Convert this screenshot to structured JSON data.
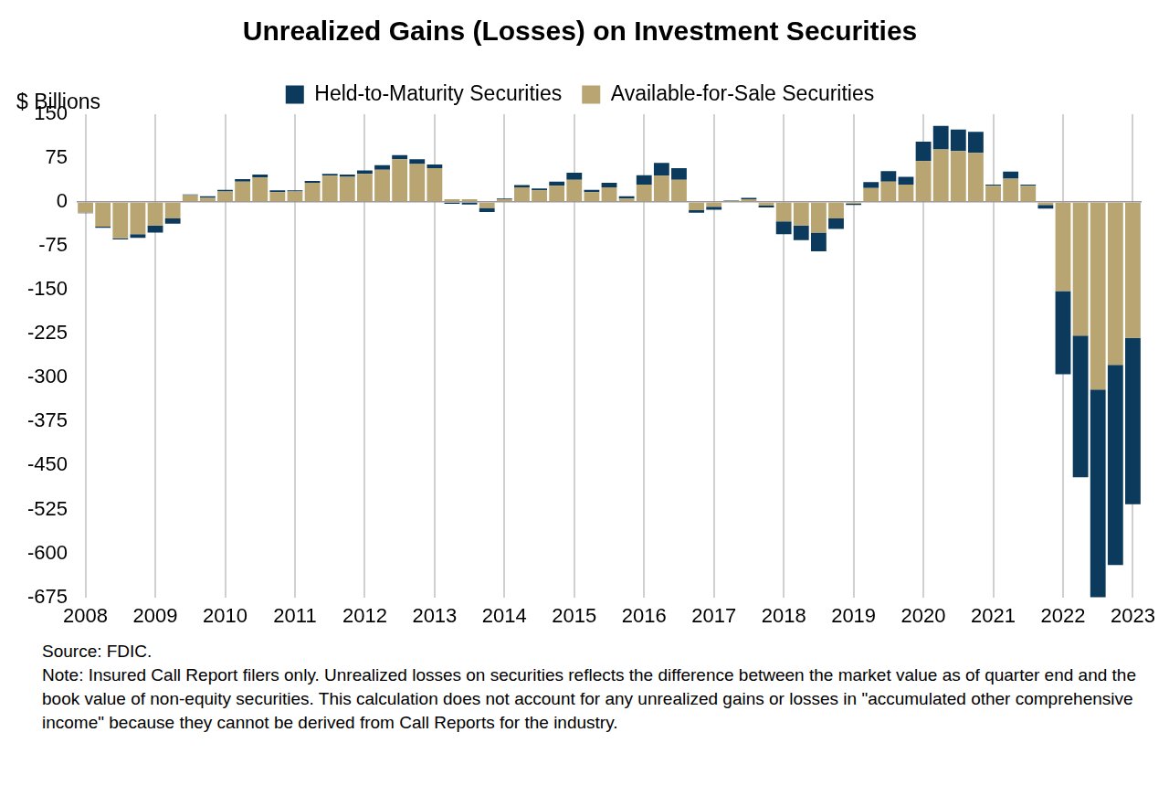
{
  "chart_data": {
    "type": "bar",
    "title": "Unrealized Gains (Losses) on Investment Securities",
    "y_label": "$ Billions",
    "source": "Source: FDIC.",
    "note": "Note: Insured Call Report filers only. Unrealized losses on securities reflects the difference between the market value as of quarter end and the book value of non-equity securities. This calculation does not account for any unrealized gains or losses in \"accumulated other comprehensive income\" because they cannot be derived from Call Reports for the industry.",
    "categories": [
      "2008",
      null,
      null,
      null,
      "2009",
      null,
      null,
      null,
      "2010",
      null,
      null,
      null,
      "2011",
      null,
      null,
      null,
      "2012",
      null,
      null,
      null,
      "2013",
      null,
      null,
      null,
      "2014",
      null,
      null,
      null,
      "2015",
      null,
      null,
      null,
      "2016",
      null,
      null,
      null,
      "2017",
      null,
      null,
      null,
      "2018",
      null,
      null,
      null,
      "2019",
      null,
      null,
      null,
      "2020",
      null,
      null,
      null,
      "2021",
      null,
      null,
      null,
      "2022",
      null,
      null,
      null,
      "2023"
    ],
    "series": [
      {
        "name": "Available-for-Sale Securities",
        "color": "#b8a572",
        "values": [
          -18,
          -42,
          -62,
          -55,
          -40,
          -28,
          12,
          7,
          18,
          35,
          42,
          17,
          18,
          33,
          45,
          43,
          48,
          55,
          73,
          65,
          58,
          5,
          5,
          -10,
          5,
          25,
          20,
          28,
          38,
          17,
          25,
          6,
          30,
          45,
          38,
          -14,
          -8,
          2,
          5,
          -6,
          -33,
          -40,
          -52,
          -28,
          -3,
          24,
          35,
          30,
          70,
          90,
          87,
          84,
          28,
          40,
          28,
          -5,
          -152,
          -228,
          -320,
          -278,
          -232
        ]
      },
      {
        "name": "Held-to-Maturity Securities",
        "color": "#0b3a5c",
        "values": [
          -1,
          -2,
          -2,
          -6,
          -12,
          -9,
          1,
          3,
          3,
          4,
          5,
          3,
          2,
          3,
          3,
          4,
          6,
          8,
          7,
          8,
          6,
          -3,
          -4,
          -7,
          1,
          4,
          3,
          7,
          12,
          4,
          8,
          4,
          16,
          22,
          20,
          -4,
          -5,
          1,
          2,
          -3,
          -22,
          -25,
          -32,
          -18,
          -2,
          10,
          18,
          13,
          33,
          40,
          37,
          36,
          2,
          12,
          2,
          -6,
          -142,
          -242,
          -370,
          -342,
          -284
        ]
      }
    ],
    "ylim": [
      -675,
      150
    ],
    "yticks": [
      -675,
      -600,
      -525,
      -450,
      -375,
      -300,
      -225,
      -150,
      -75,
      0,
      75,
      150
    ],
    "stacked": true,
    "grid": true,
    "legend": "top"
  }
}
